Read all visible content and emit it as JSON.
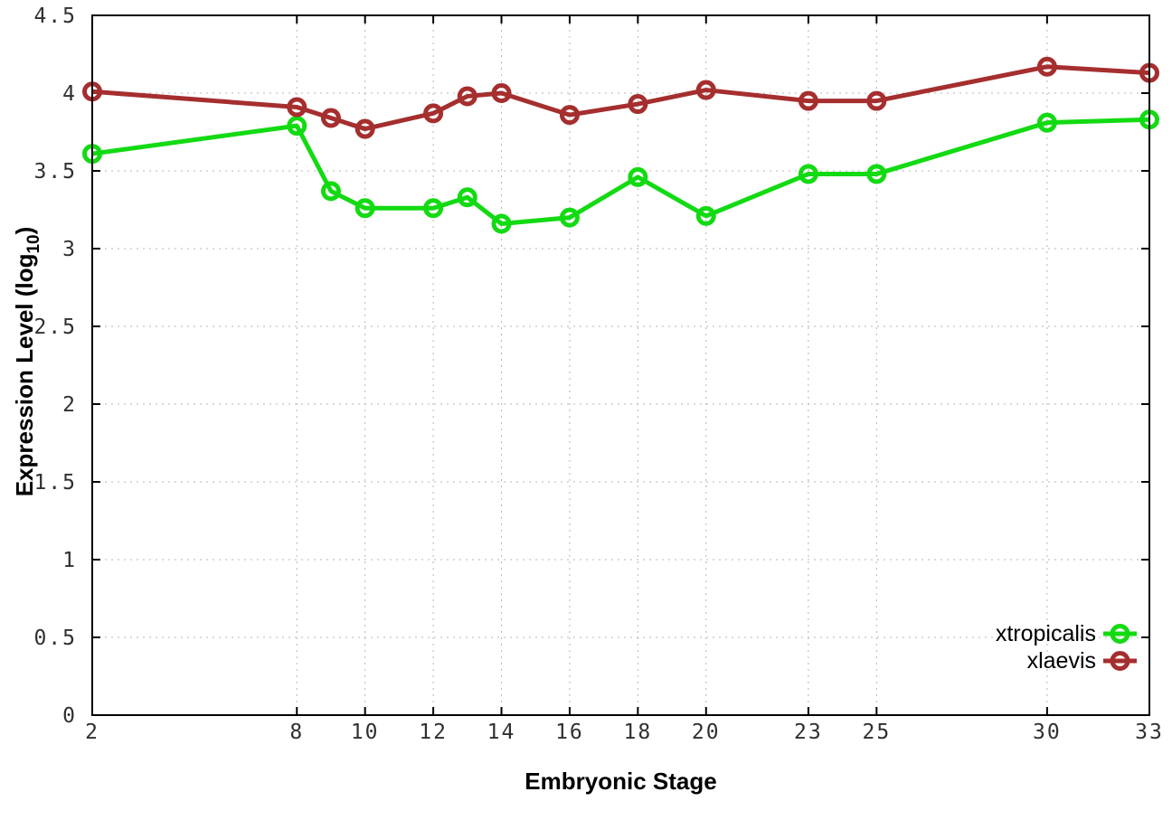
{
  "chart_data": {
    "type": "line",
    "title": "",
    "xlabel": "Embryonic Stage",
    "ylabel_prefix": "Expression Level (log",
    "ylabel_sub": "10",
    "ylabel_suffix": ")",
    "x": [
      2,
      8,
      9,
      10,
      12,
      13,
      14,
      16,
      18,
      20,
      23,
      25,
      30,
      33
    ],
    "series": [
      {
        "name": "xtropicalis",
        "color": "#13da13",
        "values": [
          3.61,
          3.79,
          3.37,
          3.26,
          3.26,
          3.33,
          3.16,
          3.2,
          3.46,
          3.21,
          3.48,
          3.48,
          3.81,
          3.83
        ]
      },
      {
        "name": "xlaevis",
        "color": "#a52e2e",
        "values": [
          4.01,
          3.91,
          3.84,
          3.77,
          3.87,
          3.98,
          4.0,
          3.86,
          3.93,
          4.02,
          3.95,
          3.95,
          4.17,
          4.13
        ]
      }
    ],
    "xlim": [
      2,
      33
    ],
    "ylim": [
      0,
      4.5
    ],
    "xticks": [
      "2",
      "8",
      "10",
      "12",
      "14",
      "16",
      "18",
      "20",
      "23",
      "25",
      "30",
      "33"
    ],
    "yticks": [
      "0",
      "0.5",
      "1",
      "1.5",
      "2",
      "2.5",
      "3",
      "3.5",
      "4",
      "4.5"
    ],
    "grid": true,
    "legend_position": "bottom-right"
  },
  "styles": {
    "background": "#ffffff",
    "axis_color": "#000000",
    "grid_color": "#b5b5b5",
    "tick_label_color": "#303030"
  }
}
